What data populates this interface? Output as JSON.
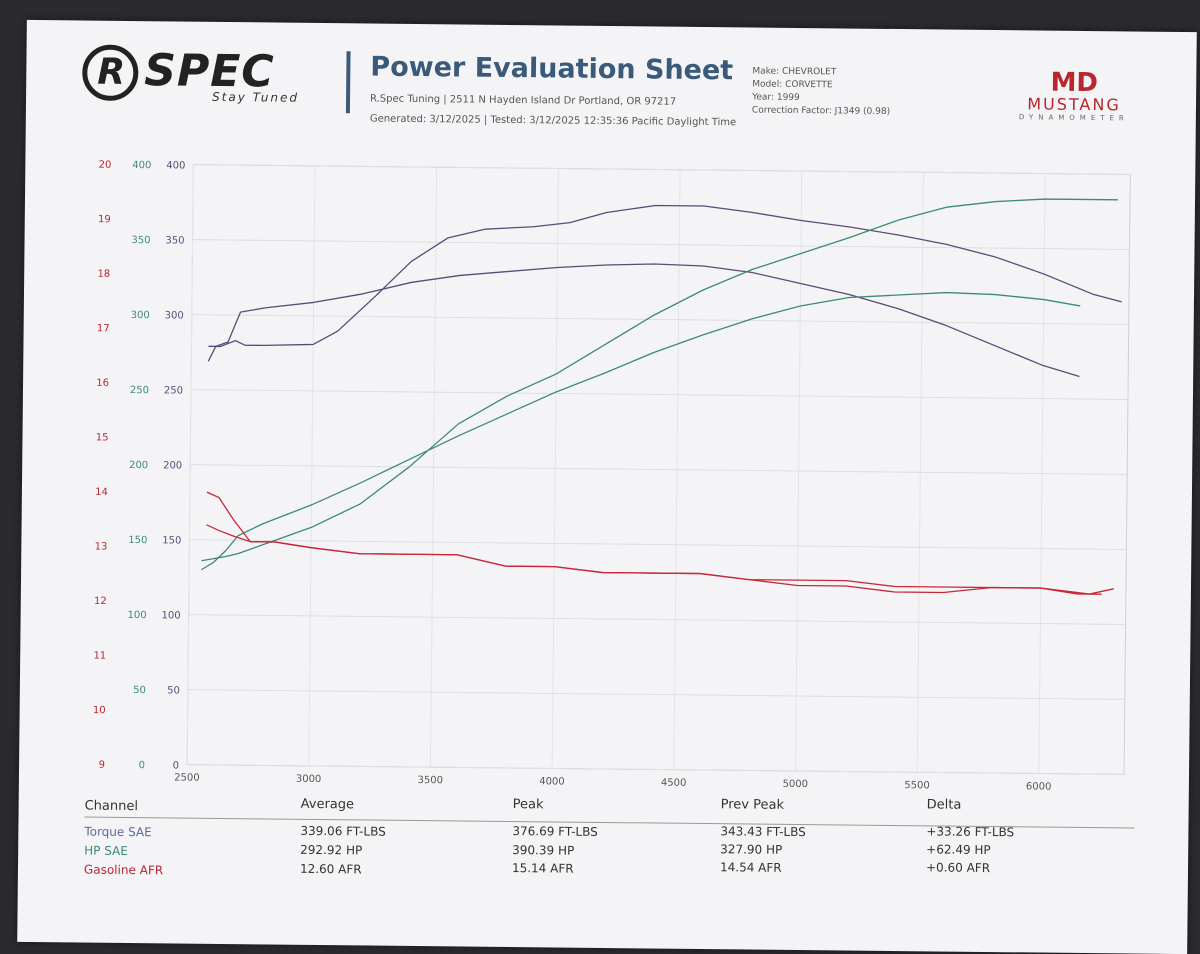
{
  "header": {
    "logo_text": "SPEC",
    "logo_tagline": "Stay Tuned",
    "title": "Power Evaluation Sheet",
    "address": "R.Spec Tuning | 2511 N Hayden Island Dr Portland, OR 97217",
    "generated": "Generated: 3/12/2025 | Tested: 3/12/2025 12:35:36 Pacific Daylight Time",
    "make": "Make: CHEVROLET",
    "model": "Model: CORVETTE",
    "year": "Year: 1999",
    "correction": "Correction Factor: J1349 (0.98)",
    "brand_logo": "MD",
    "brand_name": "MUSTANG",
    "brand_sub": "DYNAMOMETER"
  },
  "colors": {
    "torque": "#5a4a78",
    "hp": "#3e8a72",
    "afr": "#c8283a"
  },
  "chart_data": {
    "type": "line",
    "x_ticks": [
      2500,
      3000,
      3500,
      4000,
      4500,
      5000,
      5500,
      6000
    ],
    "xlim": [
      2500,
      6350
    ],
    "afr_axis": {
      "ticks": [
        9,
        10,
        11,
        12,
        13,
        14,
        15,
        16,
        17,
        18,
        19,
        20
      ],
      "range": [
        9,
        20
      ]
    },
    "hp_axis": {
      "ticks": [
        0,
        50,
        100,
        150,
        200,
        250,
        300,
        350,
        400
      ],
      "range": [
        0,
        400
      ]
    },
    "torque_axis": {
      "ticks": [
        0,
        50,
        100,
        150,
        200,
        250,
        300,
        350,
        400
      ],
      "range": [
        0,
        400
      ]
    },
    "grid": true,
    "series": [
      {
        "name": "Torque SAE",
        "key": "torque",
        "axis": "torque",
        "variant": "current",
        "x": [
          2570,
          2620,
          2680,
          2720,
          2800,
          3000,
          3100,
          3250,
          3400,
          3550,
          3700,
          3900,
          4050,
          4200,
          4400,
          4600,
          4800,
          5000,
          5200,
          5400,
          5600,
          5800,
          6000,
          6200,
          6320
        ],
        "y": [
          279,
          279,
          283,
          280,
          280,
          281,
          290,
          313,
          337,
          353,
          359,
          361,
          364,
          371,
          376,
          376,
          372,
          367,
          363,
          358,
          352,
          344,
          333,
          320,
          315
        ]
      },
      {
        "name": "Torque SAE",
        "key": "torque",
        "axis": "torque",
        "variant": "previous",
        "x": [
          2570,
          2600,
          2650,
          2700,
          2800,
          3000,
          3200,
          3400,
          3600,
          3800,
          4000,
          4200,
          4400,
          4600,
          4800,
          5000,
          5200,
          5400,
          5600,
          5800,
          6000,
          6150
        ],
        "y": [
          269,
          279,
          282,
          302,
          305,
          309,
          315,
          323,
          328,
          331,
          334,
          336,
          337,
          336,
          332,
          325,
          318,
          309,
          298,
          285,
          272,
          265
        ]
      },
      {
        "name": "HP SAE",
        "key": "hp",
        "axis": "hp",
        "variant": "current",
        "x": [
          2550,
          2650,
          2700,
          2800,
          3000,
          3200,
          3400,
          3600,
          3800,
          4000,
          4200,
          4400,
          4600,
          4800,
          5000,
          5200,
          5400,
          5600,
          5800,
          6000,
          6200,
          6300
        ],
        "y": [
          136,
          139,
          141,
          147,
          159,
          175,
          200,
          229,
          248,
          263,
          283,
          303,
          320,
          334,
          345,
          356,
          368,
          377,
          381,
          383,
          383,
          383
        ]
      },
      {
        "name": "HP SAE",
        "key": "hp",
        "axis": "hp",
        "variant": "previous",
        "x": [
          2550,
          2600,
          2650,
          2700,
          2800,
          3000,
          3200,
          3400,
          3600,
          3800,
          4000,
          4200,
          4400,
          4600,
          4800,
          5000,
          5200,
          5400,
          5600,
          5800,
          6000,
          6150
        ],
        "y": [
          130,
          135,
          143,
          153,
          161,
          174,
          189,
          205,
          221,
          236,
          251,
          264,
          278,
          290,
          301,
          310,
          316,
          318,
          320,
          319,
          316,
          312
        ]
      },
      {
        "name": "Gasoline AFR",
        "key": "afr",
        "axis": "afr",
        "variant": "current",
        "x": [
          2570,
          2620,
          2680,
          2750,
          2850,
          3000,
          3200,
          3400,
          3600,
          3800,
          4000,
          4200,
          4400,
          4600,
          4800,
          5000,
          5200,
          5400,
          5600,
          5800,
          6000,
          6200,
          6300
        ],
        "y": [
          14.0,
          13.9,
          13.5,
          13.1,
          13.1,
          13.0,
          12.9,
          12.9,
          12.9,
          12.7,
          12.7,
          12.6,
          12.6,
          12.6,
          12.5,
          12.4,
          12.4,
          12.3,
          12.3,
          12.4,
          12.4,
          12.3,
          12.4
        ]
      },
      {
        "name": "Gasoline AFR",
        "key": "afr",
        "axis": "afr",
        "variant": "previous",
        "x": [
          2570,
          2620,
          2680,
          2750,
          2850,
          3000,
          3200,
          3400,
          3600,
          3800,
          4000,
          4200,
          4400,
          4600,
          4800,
          5000,
          5200,
          5400,
          5600,
          5800,
          6000,
          6150,
          6250
        ],
        "y": [
          13.4,
          13.3,
          13.2,
          13.1,
          13.1,
          13.0,
          12.9,
          12.9,
          12.9,
          12.7,
          12.7,
          12.6,
          12.6,
          12.6,
          12.5,
          12.5,
          12.5,
          12.4,
          12.4,
          12.4,
          12.4,
          12.3,
          12.3
        ]
      }
    ]
  },
  "table": {
    "headers": {
      "channel": "Channel",
      "average": "Average",
      "peak": "Peak",
      "prev_peak": "Prev Peak",
      "delta": "Delta"
    },
    "rows": [
      {
        "channel": "Torque SAE",
        "average": "339.06 FT-LBS",
        "peak": "376.69 FT-LBS",
        "prev_peak": "343.43 FT-LBS",
        "delta": "+33.26 FT-LBS"
      },
      {
        "channel": "HP SAE",
        "average": "292.92 HP",
        "peak": "390.39 HP",
        "prev_peak": "327.90 HP",
        "delta": "+62.49 HP"
      },
      {
        "channel": "Gasoline AFR",
        "average": "12.60 AFR",
        "peak": "15.14 AFR",
        "prev_peak": "14.54 AFR",
        "delta": "+0.60 AFR"
      }
    ]
  }
}
